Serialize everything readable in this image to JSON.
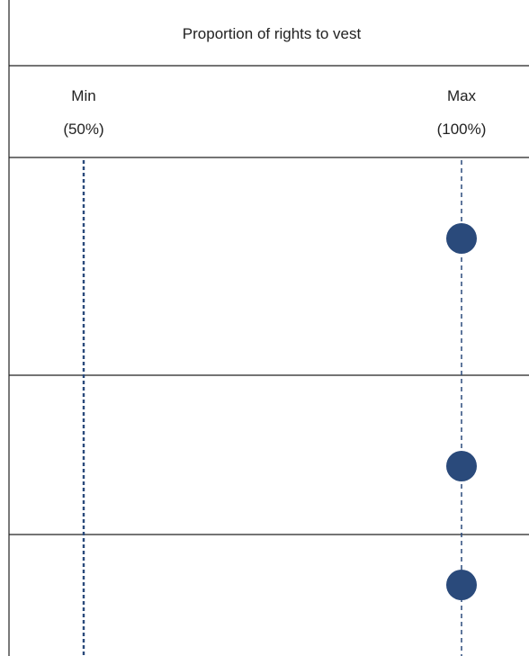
{
  "header": {
    "title": "Proportion of rights to vest",
    "min_label": "Min",
    "min_value": "(50%)",
    "max_label": "Max",
    "max_value": "(100%)"
  },
  "chart_data": {
    "type": "scatter",
    "title": "Proportion of rights to vest",
    "categories": [
      "",
      "",
      ""
    ],
    "xlabel": "",
    "ylabel": "",
    "xlim": [
      50,
      100
    ],
    "x_ticks": [
      {
        "value": 50,
        "label": "Min",
        "sublabel": "(50%)"
      },
      {
        "value": 100,
        "label": "Max",
        "sublabel": "(100%)"
      }
    ],
    "values": [
      100,
      100,
      100
    ],
    "reference_lines": [
      50,
      100
    ],
    "grid": false,
    "colors": {
      "point": "#2a4a7b",
      "reference_line": "#2a4a7b",
      "border": "#222222"
    }
  }
}
